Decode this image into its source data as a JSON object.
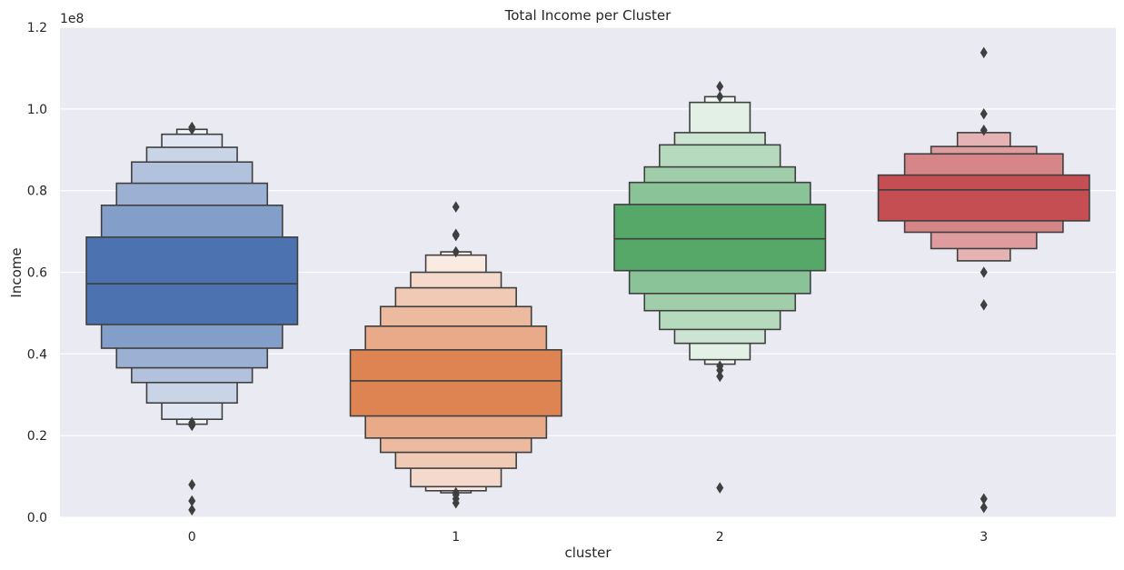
{
  "chart_data": {
    "type": "boxen",
    "title": "Total Income per Cluster",
    "xlabel": "cluster",
    "ylabel": "Income",
    "y_offset_text": "1e8",
    "y_scale": 100000000,
    "ylim": [
      0,
      1.2
    ],
    "yticks": [
      0.0,
      0.2,
      0.4,
      0.6,
      0.8,
      1.0,
      1.2
    ],
    "ytick_labels": [
      "0.0",
      "0.2",
      "0.4",
      "0.6",
      "0.8",
      "1.0",
      "1.2"
    ],
    "categories": [
      "0",
      "1",
      "2",
      "3"
    ],
    "grid": true,
    "legend": "none",
    "colors": {
      "background": "#eaeaf2",
      "grid": "#ffffff",
      "edge": "#3f3f3f"
    },
    "series": [
      {
        "category": "0",
        "color": "#4c72b0",
        "median": 0.572,
        "boxes": [
          [
            0.472,
            0.686
          ],
          [
            0.414,
            0.764
          ],
          [
            0.366,
            0.818
          ],
          [
            0.33,
            0.87
          ],
          [
            0.28,
            0.906
          ],
          [
            0.24,
            0.938
          ],
          [
            0.228,
            0.95
          ]
        ],
        "outliers": [
          0.225,
          0.232,
          0.08,
          0.04,
          0.018,
          0.95,
          0.955
        ]
      },
      {
        "category": "1",
        "color": "#dd8452",
        "median": 0.334,
        "boxes": [
          [
            0.248,
            0.41
          ],
          [
            0.194,
            0.468
          ],
          [
            0.159,
            0.516
          ],
          [
            0.12,
            0.562
          ],
          [
            0.075,
            0.6
          ],
          [
            0.065,
            0.642
          ],
          [
            0.06,
            0.65
          ]
        ],
        "outliers": [
          0.06,
          0.055,
          0.045,
          0.035,
          0.65,
          0.69,
          0.693,
          0.76
        ]
      },
      {
        "category": "2",
        "color": "#55a868",
        "median": 0.682,
        "boxes": [
          [
            0.604,
            0.766
          ],
          [
            0.548,
            0.82
          ],
          [
            0.506,
            0.858
          ],
          [
            0.46,
            0.912
          ],
          [
            0.426,
            0.942
          ],
          [
            0.386,
            1.016
          ],
          [
            0.375,
            1.03
          ]
        ],
        "outliers": [
          0.37,
          0.36,
          0.345,
          0.072,
          1.03,
          1.055
        ]
      },
      {
        "category": "3",
        "color": "#c44e52",
        "median": 0.802,
        "boxes": [
          [
            0.726,
            0.838
          ],
          [
            0.698,
            0.89
          ],
          [
            0.658,
            0.908
          ],
          [
            0.628,
            0.942
          ]
        ],
        "outliers": [
          0.948,
          0.988,
          1.138,
          0.6,
          0.52,
          0.045,
          0.024
        ]
      }
    ]
  }
}
